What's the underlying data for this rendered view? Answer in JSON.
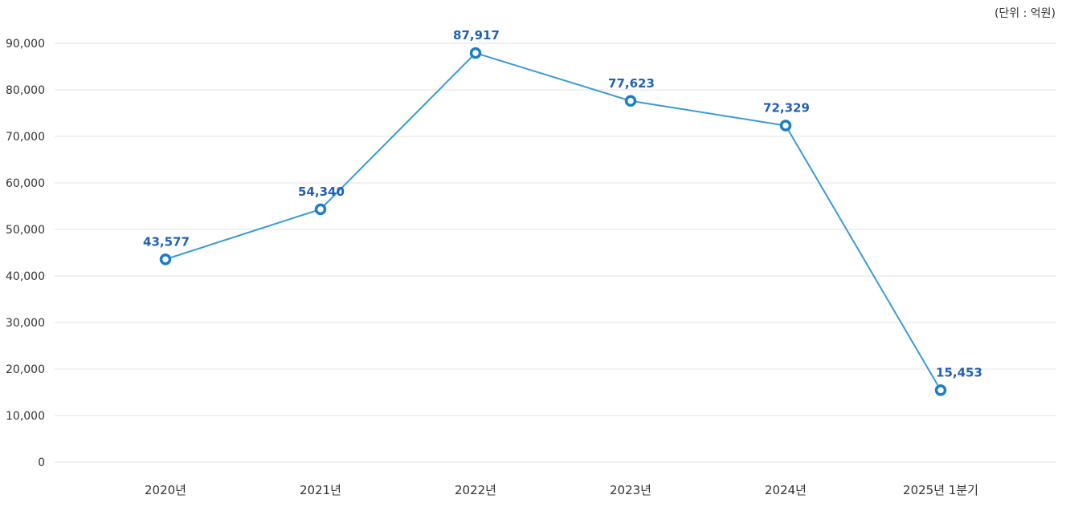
{
  "unit_note": "(단위 : 억원)",
  "colors": {
    "line": "#3a9ad6",
    "marker_stroke": "#1a7fc3",
    "marker_fill": "#ffffff",
    "data_label": "#1f5fb8",
    "grid": "#e3e3e3",
    "tick_text": "#333333"
  },
  "chart_data": {
    "type": "line",
    "title": "",
    "xlabel": "",
    "ylabel": "",
    "categories": [
      "2020년",
      "2021년",
      "2022년",
      "2023년",
      "2024년",
      "2025년 1분기"
    ],
    "values": [
      43577,
      54340,
      87917,
      77623,
      72329,
      15453
    ],
    "value_labels": [
      "43,577",
      "54,340",
      "87,917",
      "77,623",
      "72,329",
      "15,453"
    ],
    "ylim": [
      0,
      90000
    ],
    "yticks": [
      0,
      10000,
      20000,
      30000,
      40000,
      50000,
      60000,
      70000,
      80000,
      90000
    ],
    "ytick_labels": [
      "0",
      "10,000",
      "20,000",
      "30,000",
      "40,000",
      "50,000",
      "60,000",
      "70,000",
      "80,000",
      "90,000"
    ],
    "grid": true,
    "legend": "none"
  }
}
